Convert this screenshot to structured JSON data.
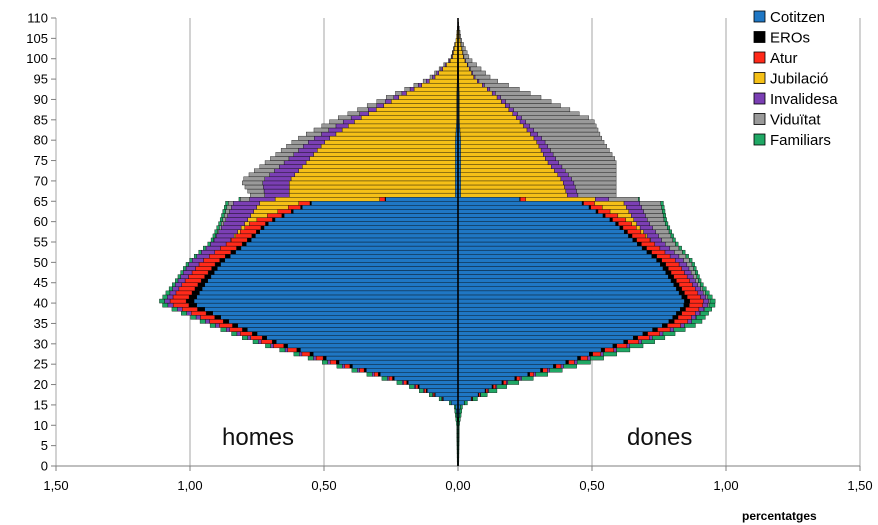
{
  "chart_data": {
    "type": "bar",
    "orientation": "horizontal",
    "subtype": "population-pyramid-stacked",
    "title": "",
    "xlabel": "percentatges",
    "ylabel": "",
    "xlim": [
      -1.5,
      1.5
    ],
    "ylim": [
      0,
      110
    ],
    "x_tick_labels": [
      "1,50",
      "1,00",
      "0,50",
      "0,00",
      "0,50",
      "1,00",
      "1,50"
    ],
    "x_tick_values": [
      -1.5,
      -1.0,
      -0.5,
      0.0,
      0.5,
      1.0,
      1.5
    ],
    "y_tick_labels": [
      "0",
      "5",
      "10",
      "15",
      "20",
      "25",
      "30",
      "35",
      "40",
      "45",
      "50",
      "55",
      "60",
      "65",
      "70",
      "75",
      "80",
      "85",
      "90",
      "95",
      "100",
      "105",
      "110"
    ],
    "y_tick_values": [
      0,
      5,
      10,
      15,
      20,
      25,
      30,
      35,
      40,
      45,
      50,
      55,
      60,
      65,
      70,
      75,
      80,
      85,
      90,
      95,
      100,
      105,
      110
    ],
    "grid": {
      "vertical": true,
      "horizontal": false
    },
    "legend_position": "top-right",
    "annotations": {
      "left": "homes",
      "right": "dones"
    },
    "series": [
      {
        "name": "Cotitzen",
        "color": "#1f77c4"
      },
      {
        "name": "EROs",
        "color": "#000000"
      },
      {
        "name": "Atur",
        "color": "#ff2a1a"
      },
      {
        "name": "Jubilació",
        "color": "#f5c017"
      },
      {
        "name": "Invalidesa",
        "color": "#7b3fb4"
      },
      {
        "name": "Viduïtat",
        "color": "#9a9a9a"
      },
      {
        "name": "Familiars",
        "color": "#20a865"
      }
    ],
    "ages": [
      0,
      5,
      10,
      15,
      20,
      25,
      30,
      35,
      40,
      45,
      50,
      55,
      60,
      65,
      66,
      70,
      75,
      80,
      85,
      90,
      95,
      100,
      105,
      110
    ],
    "homes": {
      "Cotitzen": [
        0,
        0,
        0,
        0.01,
        0.16,
        0.42,
        0.66,
        0.84,
        0.99,
        0.94,
        0.88,
        0.78,
        0.7,
        0.53,
        0.01,
        0.01,
        0.01,
        0.01,
        0.005,
        0.005,
        0.003,
        0.002,
        0.001,
        0
      ],
      "EROs": [
        0,
        0,
        0,
        0,
        0.005,
        0.01,
        0.015,
        0.02,
        0.03,
        0.025,
        0.02,
        0.015,
        0.01,
        0.005,
        0,
        0,
        0,
        0,
        0,
        0,
        0,
        0,
        0,
        0
      ],
      "Atur": [
        0,
        0,
        0,
        0,
        0.01,
        0.02,
        0.04,
        0.05,
        0.06,
        0.06,
        0.06,
        0.06,
        0.06,
        0.04,
        0,
        0,
        0,
        0,
        0,
        0,
        0,
        0,
        0,
        0
      ],
      "Jubilació": [
        0,
        0,
        0,
        0,
        0,
        0,
        0,
        0,
        0,
        0,
        0,
        0,
        0.02,
        0.16,
        0.62,
        0.62,
        0.55,
        0.48,
        0.37,
        0.23,
        0.09,
        0.02,
        0.005,
        0
      ],
      "Invalidesa": [
        0,
        0,
        0,
        0,
        0.005,
        0.01,
        0.01,
        0.015,
        0.02,
        0.025,
        0.04,
        0.06,
        0.08,
        0.1,
        0.09,
        0.1,
        0.08,
        0.06,
        0.04,
        0.02,
        0.01,
        0.003,
        0,
        0
      ],
      "Viduïtat": [
        0,
        0,
        0,
        0,
        0,
        0,
        0,
        0,
        0,
        0,
        0,
        0,
        0.01,
        0.02,
        0.05,
        0.08,
        0.07,
        0.06,
        0.05,
        0.03,
        0.01,
        0.003,
        0,
        0
      ],
      "Familiars": [
        0.003,
        0.004,
        0.005,
        0.005,
        0.02,
        0.02,
        0.02,
        0.02,
        0.02,
        0.01,
        0.01,
        0.01,
        0.01,
        0.01,
        0,
        0,
        0,
        0,
        0,
        0,
        0,
        0,
        0,
        0
      ]
    },
    "dones": {
      "Cotitzen": [
        0,
        0,
        0,
        0.01,
        0.14,
        0.38,
        0.6,
        0.78,
        0.85,
        0.8,
        0.75,
        0.66,
        0.58,
        0.45,
        0.01,
        0.01,
        0.01,
        0.01,
        0.005,
        0.005,
        0.003,
        0.002,
        0.001,
        0
      ],
      "EROs": [
        0,
        0,
        0,
        0,
        0.005,
        0.01,
        0.015,
        0.02,
        0.02,
        0.02,
        0.02,
        0.015,
        0.01,
        0.005,
        0,
        0,
        0,
        0,
        0,
        0,
        0,
        0,
        0,
        0
      ],
      "Atur": [
        0,
        0,
        0,
        0,
        0.01,
        0.02,
        0.04,
        0.05,
        0.05,
        0.05,
        0.05,
        0.05,
        0.05,
        0.04,
        0,
        0,
        0,
        0,
        0,
        0,
        0,
        0,
        0,
        0
      ],
      "Jubilació": [
        0,
        0,
        0,
        0,
        0,
        0,
        0,
        0,
        0,
        0,
        0,
        0,
        0.02,
        0.12,
        0.4,
        0.38,
        0.32,
        0.28,
        0.22,
        0.15,
        0.06,
        0.02,
        0.005,
        0
      ],
      "Invalidesa": [
        0,
        0,
        0,
        0,
        0.005,
        0.01,
        0.01,
        0.015,
        0.02,
        0.02,
        0.03,
        0.04,
        0.05,
        0.06,
        0.04,
        0.04,
        0.04,
        0.03,
        0.02,
        0.015,
        0.005,
        0.002,
        0,
        0
      ],
      "Viduïtat": [
        0,
        0,
        0,
        0,
        0,
        0,
        0,
        0,
        0.005,
        0.01,
        0.02,
        0.04,
        0.06,
        0.08,
        0.14,
        0.16,
        0.22,
        0.22,
        0.26,
        0.16,
        0.06,
        0.02,
        0.005,
        0
      ],
      "Familiars": [
        0.003,
        0.004,
        0.005,
        0.008,
        0.04,
        0.05,
        0.05,
        0.04,
        0.02,
        0.01,
        0.01,
        0.01,
        0.01,
        0.01,
        0,
        0,
        0,
        0,
        0,
        0,
        0,
        0,
        0,
        0
      ]
    }
  }
}
